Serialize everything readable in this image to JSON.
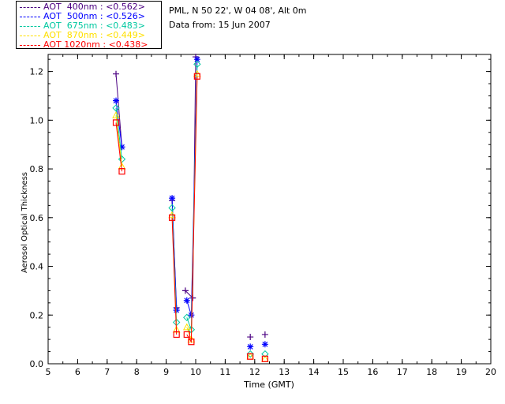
{
  "legend": [
    {
      "label": "AOT  400nm : <0.562>",
      "color": "#4b0082"
    },
    {
      "label": "AOT  500nm : <0.526>",
      "color": "#0000ff"
    },
    {
      "label": "AOT  675nm : <0.483>",
      "color": "#00c8a0"
    },
    {
      "label": "AOT  870nm : <0.449>",
      "color": "#ffe000"
    },
    {
      "label": "AOT 1020nm : <0.438>",
      "color": "#ff0000"
    }
  ],
  "info": {
    "location": "PML, N 50 22', W 04 08', Alt 0m",
    "date": "Data from: 15 Jun 2007"
  },
  "chart_data": {
    "type": "line",
    "xlabel": "Time (GMT)",
    "ylabel": "Aerosol Optical Thickness",
    "xlim": [
      5,
      20
    ],
    "ylim": [
      0.0,
      1.27
    ],
    "xticks": [
      5,
      6,
      7,
      8,
      9,
      10,
      11,
      12,
      13,
      14,
      15,
      16,
      17,
      18,
      19,
      20
    ],
    "yticks": [
      0.0,
      0.2,
      0.4,
      0.6,
      0.8,
      1.0,
      1.2
    ],
    "series": [
      {
        "name": "AOT  400nm",
        "color": "#4b0082",
        "marker": "plus",
        "segments": [
          [
            [
              7.3,
              1.19
            ],
            [
              7.5,
              0.89
            ]
          ],
          [
            [
              9.2,
              0.67
            ],
            [
              9.35,
              0.23
            ]
          ],
          [
            [
              9.65,
              0.3
            ],
            [
              9.9,
              0.27
            ],
            [
              10.0,
              1.26
            ]
          ],
          [
            [
              11.85,
              0.11
            ]
          ],
          [
            [
              12.35,
              0.12
            ]
          ]
        ]
      },
      {
        "name": "AOT  500nm",
        "color": "#0000ff",
        "marker": "star",
        "segments": [
          [
            [
              7.3,
              1.08
            ],
            [
              7.5,
              0.89
            ]
          ],
          [
            [
              9.2,
              0.68
            ],
            [
              9.35,
              0.22
            ]
          ],
          [
            [
              9.7,
              0.26
            ],
            [
              9.85,
              0.2
            ],
            [
              10.05,
              1.25
            ]
          ],
          [
            [
              11.85,
              0.07
            ]
          ],
          [
            [
              12.35,
              0.08
            ]
          ]
        ]
      },
      {
        "name": "AOT  675nm",
        "color": "#00c8a0",
        "marker": "diamond",
        "segments": [
          [
            [
              7.3,
              1.05
            ],
            [
              7.5,
              0.84
            ]
          ],
          [
            [
              9.2,
              0.64
            ],
            [
              9.35,
              0.17
            ]
          ],
          [
            [
              9.7,
              0.19
            ],
            [
              9.85,
              0.14
            ],
            [
              10.05,
              1.23
            ]
          ],
          [
            [
              11.85,
              0.04
            ]
          ],
          [
            [
              12.35,
              0.04
            ]
          ]
        ]
      },
      {
        "name": "AOT  870nm",
        "color": "#ffe000",
        "marker": "triangle",
        "segments": [
          [
            [
              7.3,
              1.02
            ],
            [
              7.5,
              0.81
            ]
          ],
          [
            [
              9.2,
              0.61
            ],
            [
              9.35,
              0.14
            ]
          ],
          [
            [
              9.7,
              0.15
            ],
            [
              9.85,
              0.1
            ],
            [
              10.05,
              1.19
            ]
          ],
          [
            [
              11.85,
              0.03
            ]
          ],
          [
            [
              12.35,
              0.02
            ]
          ]
        ]
      },
      {
        "name": "AOT 1020nm",
        "color": "#ff0000",
        "marker": "square",
        "segments": [
          [
            [
              7.3,
              0.99
            ],
            [
              7.5,
              0.79
            ]
          ],
          [
            [
              9.2,
              0.6
            ],
            [
              9.35,
              0.12
            ]
          ],
          [
            [
              9.7,
              0.12
            ],
            [
              9.85,
              0.09
            ],
            [
              10.05,
              1.18
            ]
          ],
          [
            [
              11.85,
              0.03
            ]
          ],
          [
            [
              12.35,
              0.02
            ]
          ]
        ]
      }
    ]
  }
}
